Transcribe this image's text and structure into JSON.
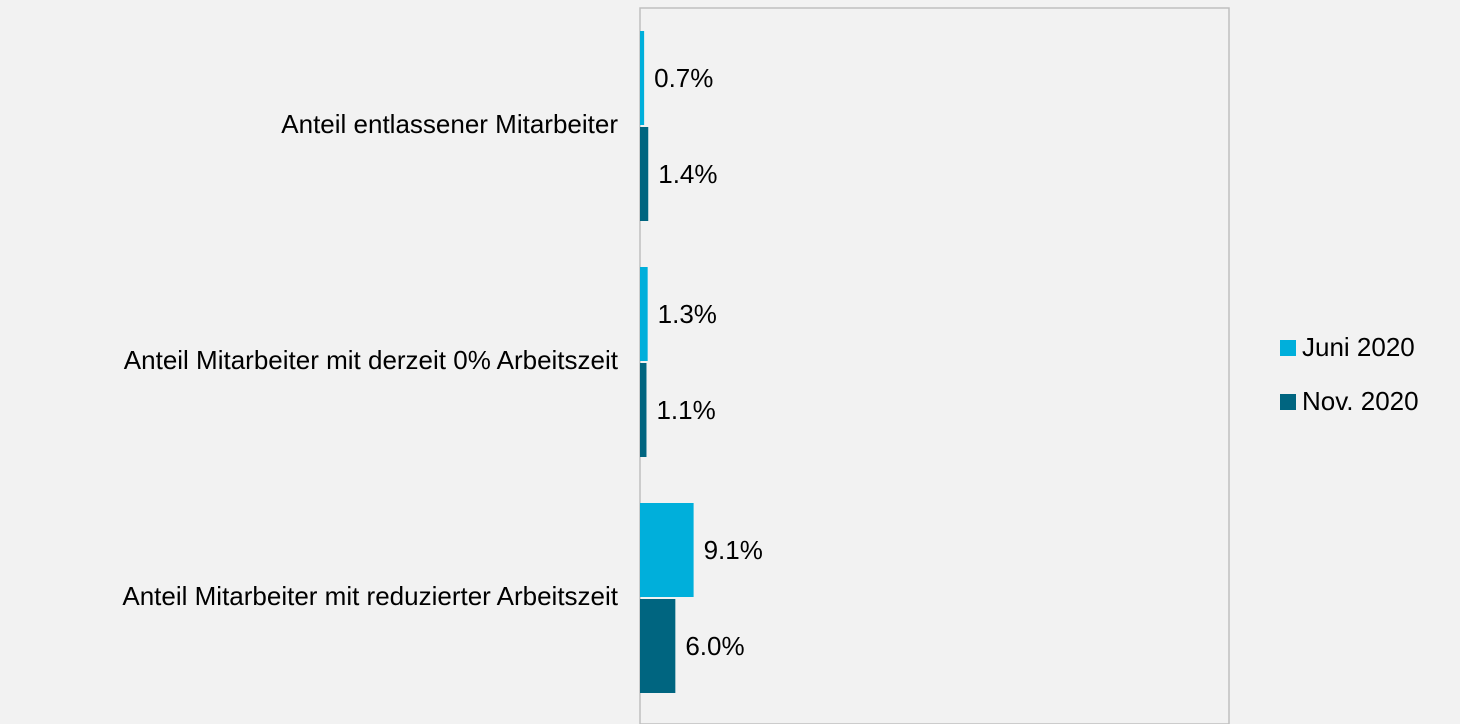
{
  "chart_data": {
    "type": "bar",
    "orientation": "horizontal",
    "categories": [
      "Anteil entlassener Mitarbeiter",
      "Anteil Mitarbeiter mit derzeit 0% Arbeitszeit",
      "Anteil Mitarbeiter mit reduzierter Arbeitszeit"
    ],
    "series": [
      {
        "name": "Juni 2020",
        "color": "#00afdb",
        "values": [
          0.7,
          1.3,
          9.1
        ],
        "value_labels": [
          "0.7%",
          "1.3%",
          "9.1%"
        ]
      },
      {
        "name": "Nov. 2020",
        "color": "#006580",
        "values": [
          1.4,
          1.1,
          6.0
        ],
        "value_labels": [
          "1.4%",
          "1.1%",
          "6.0%"
        ]
      }
    ],
    "xlim": [
      0,
      100
    ],
    "legend": "right"
  }
}
